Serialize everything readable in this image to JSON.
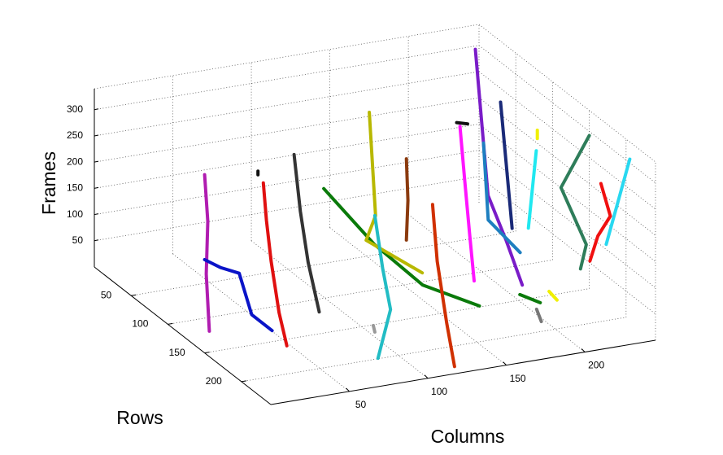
{
  "chart_data": {
    "type": "line3d",
    "xlabel": "Columns",
    "ylabel": "Rows",
    "zlabel": "Frames",
    "xlim": [
      0,
      245
    ],
    "ylim": [
      0,
      240
    ],
    "zlim": [
      0,
      340
    ],
    "xticks": [
      50,
      100,
      150,
      200
    ],
    "yticks": [
      50,
      100,
      150,
      200
    ],
    "zticks": [
      50,
      100,
      150,
      200,
      250,
      300
    ],
    "grid": true,
    "series": [
      {
        "color": "#b01cb0",
        "x": [
          3,
          1,
          2,
          0
        ],
        "y": [
          150,
          150,
          150,
          150
        ],
        "z": [
          40,
          150,
          250,
          340
        ]
      },
      {
        "color": "#0a14c8",
        "x": [
          43,
          30,
          22,
          10,
          0
        ],
        "y": [
          150,
          150,
          150,
          150,
          150
        ],
        "z": [
          21,
          58,
          141,
          158,
          178
        ]
      },
      {
        "color": "#e01010",
        "x": [
          43,
          38,
          33,
          30,
          28
        ],
        "y": [
          170,
          170,
          170,
          170,
          170
        ],
        "z": [
          14,
          80,
          180,
          260,
          332
        ]
      },
      {
        "color": "#333333",
        "x": [
          87,
          80,
          75,
          71
        ],
        "y": [
          120,
          120,
          120,
          120
        ],
        "z": [
          2,
          100,
          200,
          310
        ]
      },
      {
        "color": "#0a7a0a",
        "x": [
          118,
          136,
          153,
          175
        ],
        "y": [
          60,
          90,
          120,
          150
        ],
        "z": [
          156,
          74,
          20,
          2
        ]
      },
      {
        "color": "#b8b800",
        "x": [
          147,
          151,
          145,
          162
        ],
        "y": [
          60,
          60,
          60,
          100
        ],
        "z": [
          287,
          88,
          44,
          17
        ]
      },
      {
        "color": "#22bcc4",
        "x": [
          87,
          95,
          90,
          85
        ],
        "y": [
          200,
          200,
          200,
          200
        ],
        "z": [
          1,
          90,
          170,
          274
        ]
      },
      {
        "color": "#d03000",
        "x": [
          117,
          112,
          106,
          103
        ],
        "y": [
          240,
          240,
          240,
          240
        ],
        "z": [
          14,
          100,
          220,
          330
        ]
      },
      {
        "color": "#8b3a0e",
        "x": [
          180,
          181,
          180
        ],
        "y": [
          40,
          40,
          40
        ],
        "z": [
          5,
          80,
          160
        ]
      },
      {
        "color": "#ff14ff",
        "x": [
          181,
          178,
          175,
          172
        ],
        "y": [
          130,
          130,
          130,
          130
        ],
        "z": [
          25,
          120,
          220,
          324
        ]
      },
      {
        "color": "#7a1cc8",
        "x": [
          238,
          232,
          220,
          207
        ],
        "y": [
          10,
          40,
          90,
          140
        ],
        "z": [
          307,
          64,
          40,
          15
        ]
      },
      {
        "color": "#1e7fc0",
        "x": [
          201,
          204,
          215
        ],
        "y": [
          100,
          100,
          120
        ],
        "z": [
          245,
          97,
          51
        ]
      },
      {
        "color": "#1a2a78",
        "x": [
          240,
          238
        ],
        "y": [
          40,
          60
        ],
        "z": [
          238,
          20
        ]
      },
      {
        "color": "#20e8f0",
        "x": [
          244,
          239
        ],
        "y": [
          80,
          80
        ],
        "z": [
          187,
          42
        ]
      },
      {
        "color": "#2e7d5a",
        "x": [
          245,
          241,
          229,
          216
        ],
        "y": [
          150,
          120,
          180,
          200
        ],
        "z": [
          292,
          162,
          125,
          107
        ]
      },
      {
        "color": "#f01010",
        "x": [
          229,
          235,
          227,
          222
        ],
        "y": [
          200,
          200,
          200,
          200
        ],
        "z": [
          263,
          198,
          164,
          119
        ]
      },
      {
        "color": "#28d8f0",
        "x": [
          238,
          223
        ],
        "y": [
          220,
          220
        ],
        "z": [
          327,
          172
        ]
      },
      {
        "color": "#f0f000",
        "x": [
          240,
          240
        ],
        "y": [
          90,
          90
        ],
        "z": [
          239,
          223
        ]
      },
      {
        "color": "#f0f000",
        "x": [
          196,
          201
        ],
        "y": [
          200,
          200
        ],
        "z": [
          74,
          55
        ]
      },
      {
        "color": "#0a7a0a",
        "x": [
          182,
          195
        ],
        "y": [
          190,
          190
        ],
        "z": [
          64,
          42
        ]
      },
      {
        "color": "#777777",
        "x": [
          188,
          191
        ],
        "y": [
          200,
          200
        ],
        "z": [
          44,
          19
        ]
      },
      {
        "color": "#999999",
        "x": [
          84,
          85
        ],
        "y": [
          200,
          200
        ],
        "z": [
          65,
          52
        ]
      },
      {
        "color": "#111111",
        "x": [
          48,
          48
        ],
        "y": [
          120,
          120
        ],
        "z": [
          290,
          283
        ]
      },
      {
        "color": "#111111",
        "x": [
          212,
          219
        ],
        "y": [
          40,
          40
        ],
        "z": [
          213,
          207
        ]
      }
    ]
  }
}
